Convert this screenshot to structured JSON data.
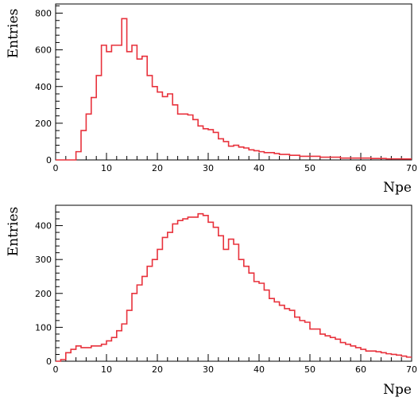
{
  "chart_data": [
    {
      "type": "bar",
      "histogram": true,
      "xlabel": "Npe",
      "ylabel": "Entries",
      "xlim": [
        0,
        70
      ],
      "ylim": [
        0,
        850
      ],
      "xticks": [
        0,
        10,
        20,
        30,
        40,
        50,
        60,
        70
      ],
      "yticks": [
        0,
        200,
        400,
        600,
        800
      ],
      "bin_width": 1,
      "bin_start": 0,
      "values": [
        0,
        0,
        0,
        0,
        45,
        160,
        250,
        340,
        460,
        625,
        590,
        625,
        625,
        770,
        590,
        625,
        550,
        565,
        460,
        400,
        370,
        345,
        360,
        300,
        250,
        250,
        245,
        220,
        185,
        170,
        165,
        150,
        115,
        100,
        75,
        80,
        70,
        65,
        55,
        50,
        45,
        40,
        40,
        35,
        30,
        30,
        25,
        25,
        20,
        20,
        20,
        20,
        15,
        15,
        15,
        15,
        10,
        10,
        10,
        10,
        10,
        10,
        8,
        8,
        8,
        6,
        6,
        6,
        5,
        5
      ],
      "line_color": "#e8323c"
    },
    {
      "type": "bar",
      "histogram": true,
      "xlabel": "Npe",
      "ylabel": "Entries",
      "xlim": [
        0,
        70
      ],
      "ylim": [
        0,
        460
      ],
      "xticks": [
        0,
        10,
        20,
        30,
        40,
        50,
        60,
        70
      ],
      "yticks": [
        0,
        100,
        200,
        300,
        400
      ],
      "bin_width": 1,
      "bin_start": 0,
      "values": [
        0,
        5,
        25,
        35,
        45,
        40,
        40,
        45,
        45,
        50,
        60,
        70,
        90,
        110,
        150,
        200,
        225,
        250,
        280,
        300,
        330,
        365,
        380,
        405,
        415,
        420,
        425,
        425,
        435,
        430,
        410,
        395,
        370,
        330,
        360,
        345,
        300,
        280,
        260,
        235,
        230,
        210,
        185,
        175,
        165,
        155,
        150,
        130,
        120,
        115,
        95,
        95,
        80,
        75,
        70,
        65,
        55,
        50,
        45,
        40,
        35,
        30,
        30,
        28,
        25,
        22,
        20,
        18,
        15,
        12
      ],
      "line_color": "#e8323c"
    }
  ]
}
